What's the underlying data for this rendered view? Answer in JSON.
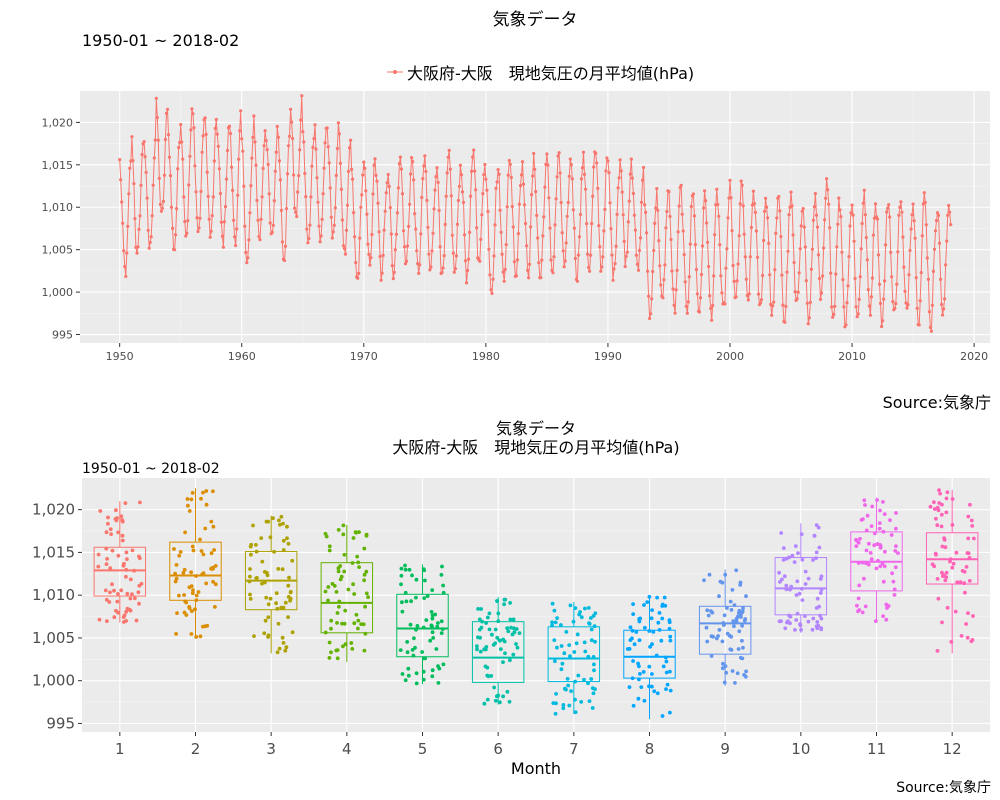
{
  "chart_data": [
    {
      "type": "line",
      "title": "気象データ",
      "subtitle": "1950-01 ~ 2018-02",
      "caption": "Source:気象庁",
      "legend": {
        "position": "top",
        "label": "大阪府-大阪　現地気圧の月平均値(hPa)"
      },
      "series_color": "#F8766D",
      "xlim": [
        1946.75,
        2021.3
      ],
      "ylim": [
        994,
        1023.7
      ],
      "x_ticks": [
        1950,
        1960,
        1970,
        1980,
        1990,
        2000,
        2010,
        2020
      ],
      "x_tick_labels": [
        "1950",
        "1960",
        "1970",
        "1980",
        "1990",
        "2000",
        "2010",
        "2020"
      ],
      "y_ticks": [
        995,
        1000,
        1005,
        1010,
        1015,
        1020
      ],
      "y_tick_labels": [
        "995",
        "1,000",
        "1,005",
        "1,010",
        "1,015",
        "1,020"
      ],
      "grid": true,
      "series": [
        {
          "name": "大阪府-大阪　現地気圧の月平均値(hPa)",
          "x": [
            1950.0,
            1951.0,
            1952.0,
            1953.0,
            1954.0,
            1955.0,
            1956.0,
            1957.0,
            1958.0,
            1959.0,
            1960.0,
            1961.0,
            1962.0,
            1963.0,
            1964.0,
            1965.0,
            1966.0,
            1967.0,
            1968.0,
            1969.0,
            1970.0,
            1971.0,
            1972.0,
            1973.0,
            1974.0,
            1975.0,
            1976.0,
            1977.0,
            1978.0,
            1979.0,
            1980.0,
            1981.0,
            1982.0,
            1983.0,
            1984.0,
            1985.0,
            1986.0,
            1987.0,
            1988.0,
            1989.0,
            1990.0,
            1991.0,
            1992.0,
            1993.0,
            1994.0,
            1995.0,
            1996.0,
            1997.0,
            1998.0,
            1999.0,
            2000.0,
            2001.0,
            2002.0,
            2003.0,
            2004.0,
            2005.0,
            2006.0,
            2007.0,
            2008.0,
            2009.0,
            2010.0,
            2011.0,
            2012.0,
            2013.0,
            2014.0,
            2015.0,
            2016.0,
            2017.0,
            2018.0
          ],
          "y": [
            1015.5,
            1017.8,
            1018.5,
            1022.2,
            1018.8,
            1021.0,
            1020.6,
            1019.9,
            1019.2,
            1020.0,
            1017.3,
            1020.0,
            1019.3,
            1018.6,
            1022.4,
            1019.2,
            1019.8,
            1019.5,
            1017.5,
            1014.0,
            1016.0,
            1014.4,
            1015.3,
            1016.1,
            1015.0,
            1015.2,
            1014.8,
            1015.2,
            1014.9,
            1016.6,
            1014.0,
            1015.1,
            1015.6,
            1015.5,
            1014.6,
            1015.6,
            1015.3,
            1015.4,
            1016.1,
            1015.8,
            1014.9,
            1016.7,
            1015.0,
            1011.0,
            1012.1,
            1011.4,
            1011.7,
            1011.4,
            1011.0,
            1010.6,
            1012.2,
            1012.0,
            1011.4,
            1011.2,
            1010.5,
            1011.3,
            1010.2,
            1012.4,
            1011.3,
            1010.4,
            1010.9,
            1011.5,
            1010.5,
            1010.8,
            1011.0,
            1011.5,
            1010.2,
            1010.8,
            1010.6
          ]
        }
      ]
    },
    {
      "type": "boxplot",
      "title": "気象データ",
      "subtitle_line2": "大阪府-大阪　現地気圧の月平均値(hPa)",
      "subtitle": "1950-01 ~ 2018-02",
      "xlabel": "Month",
      "caption": "Source:気象庁",
      "ylim": [
        994,
        1023.7
      ],
      "y_ticks": [
        995,
        1000,
        1005,
        1010,
        1015,
        1020
      ],
      "y_tick_labels": [
        "995",
        "1,000",
        "1,005",
        "1,010",
        "1,015",
        "1,020"
      ],
      "categories": [
        "1",
        "2",
        "3",
        "4",
        "5",
        "6",
        "7",
        "8",
        "9",
        "10",
        "11",
        "12"
      ],
      "grid": true,
      "colors": [
        "#F8766D",
        "#DB8E00",
        "#AEA200",
        "#64B200",
        "#00BD5C",
        "#00C1A7",
        "#00BADE",
        "#00A6FF",
        "#6495ED",
        "#B385FF",
        "#EF67EB",
        "#FF63B6"
      ],
      "boxes": [
        {
          "month": "1",
          "min": 1006.8,
          "q1": 1009.9,
          "median": 1012.9,
          "q3": 1015.6,
          "max": 1021.0
        },
        {
          "month": "2",
          "min": 1005.1,
          "q1": 1009.4,
          "median": 1012.3,
          "q3": 1016.2,
          "max": 1022.5
        },
        {
          "month": "3",
          "min": 1003.2,
          "q1": 1008.3,
          "median": 1011.7,
          "q3": 1015.1,
          "max": 1019.3
        },
        {
          "month": "4",
          "min": 1002.2,
          "q1": 1005.6,
          "median": 1009.1,
          "q3": 1013.8,
          "max": 1018.2
        },
        {
          "month": "5",
          "min": 999.6,
          "q1": 1002.8,
          "median": 1006.1,
          "q3": 1010.1,
          "max": 1013.6
        },
        {
          "month": "6",
          "min": 997.2,
          "q1": 999.8,
          "median": 1002.7,
          "q3": 1006.9,
          "max": 1009.8
        },
        {
          "month": "7",
          "min": 996.1,
          "q1": 999.9,
          "median": 1002.6,
          "q3": 1006.3,
          "max": 1009.2
        },
        {
          "month": "8",
          "min": 995.5,
          "q1": 1000.3,
          "median": 1002.8,
          "q3": 1005.9,
          "max": 1009.9
        },
        {
          "month": "9",
          "min": 999.4,
          "q1": 1003.1,
          "median": 1006.7,
          "q3": 1008.7,
          "max": 1013.0
        },
        {
          "month": "10",
          "min": 1005.6,
          "q1": 1007.7,
          "median": 1010.8,
          "q3": 1014.4,
          "max": 1018.4
        },
        {
          "month": "11",
          "min": 1006.9,
          "q1": 1010.5,
          "median": 1013.9,
          "q3": 1017.4,
          "max": 1021.4
        },
        {
          "month": "12",
          "min": 1003.2,
          "q1": 1011.3,
          "median": 1014.2,
          "q3": 1017.3,
          "max": 1022.3
        }
      ],
      "n_points_per_month": 68
    }
  ]
}
